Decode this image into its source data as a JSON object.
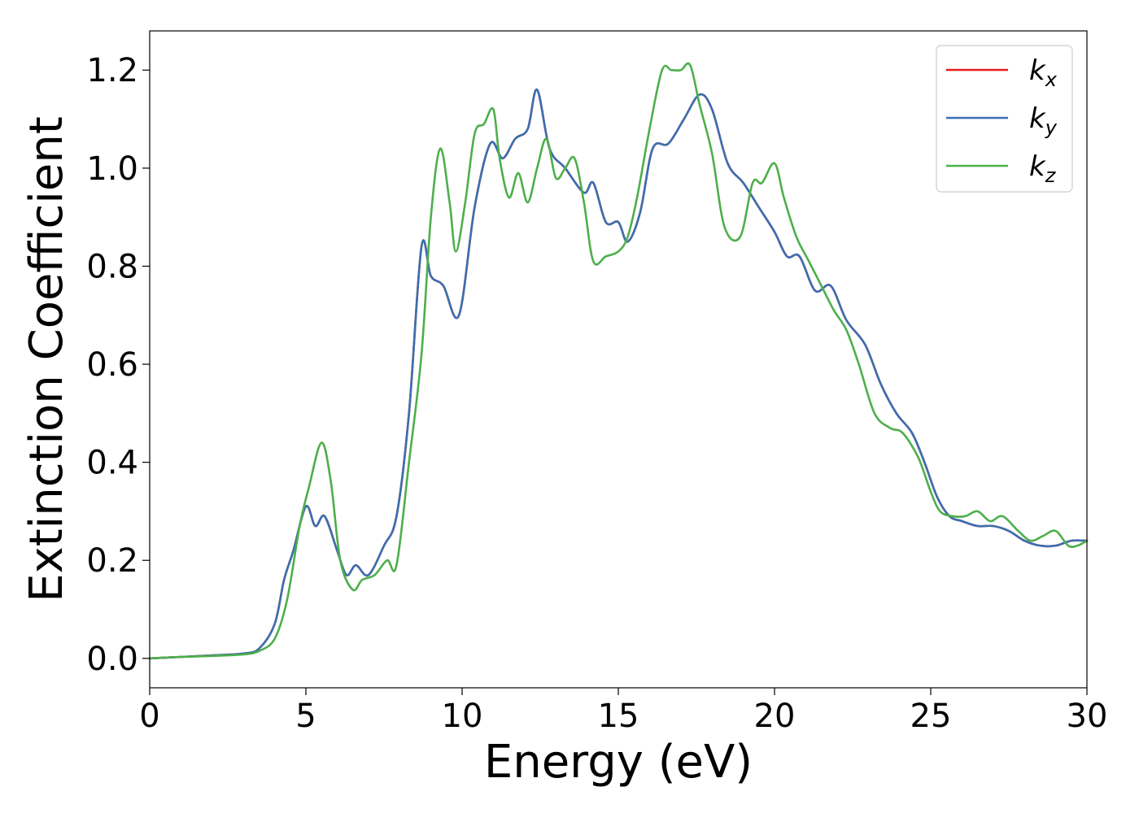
{
  "chart_data": {
    "type": "line",
    "xlabel": "Energy (eV)",
    "ylabel": "Extinction Coefficient",
    "xlim": [
      0,
      30
    ],
    "ylim": [
      -0.06,
      1.28
    ],
    "xticks": [
      0,
      5,
      10,
      15,
      20,
      25,
      30
    ],
    "xtick_labels": [
      "0",
      "5",
      "10",
      "15",
      "20",
      "25",
      "30"
    ],
    "yticks": [
      0.0,
      0.2,
      0.4,
      0.6,
      0.8,
      1.0,
      1.2
    ],
    "ytick_labels": [
      "0.0",
      "0.2",
      "0.4",
      "0.6",
      "0.8",
      "1.0",
      "1.2"
    ],
    "grid": false,
    "legend_position": "top-right",
    "series": [
      {
        "name": "k_x",
        "legend_base": "k",
        "legend_sub": "x",
        "color": "#e41a1c",
        "x": [
          0,
          1,
          2,
          3,
          3.5,
          4,
          4.3,
          4.6,
          5,
          5.3,
          5.6,
          6,
          6.3,
          6.6,
          7,
          7.5,
          7.9,
          8.3,
          8.7,
          9,
          9.4,
          9.9,
          10.4,
          10.9,
          11.3,
          11.7,
          12.1,
          12.4,
          12.8,
          13.3,
          13.9,
          14.2,
          14.6,
          15,
          15.3,
          15.7,
          16.1,
          16.6,
          17.1,
          17.6,
          18,
          18.5,
          19,
          19.5,
          20,
          20.4,
          20.8,
          21.3,
          21.8,
          22.3,
          22.9,
          23.4,
          23.9,
          24.4,
          24.8,
          25.2,
          25.6,
          26,
          26.5,
          27,
          27.5,
          28,
          28.5,
          29,
          29.5,
          30
        ],
        "y": [
          0.0,
          0.003,
          0.006,
          0.01,
          0.02,
          0.07,
          0.16,
          0.22,
          0.31,
          0.27,
          0.29,
          0.22,
          0.17,
          0.19,
          0.17,
          0.23,
          0.29,
          0.5,
          0.84,
          0.78,
          0.76,
          0.7,
          0.92,
          1.05,
          1.02,
          1.06,
          1.08,
          1.16,
          1.04,
          1.0,
          0.95,
          0.97,
          0.89,
          0.89,
          0.85,
          0.91,
          1.04,
          1.05,
          1.1,
          1.15,
          1.12,
          1.01,
          0.97,
          0.92,
          0.87,
          0.82,
          0.82,
          0.75,
          0.76,
          0.69,
          0.64,
          0.56,
          0.5,
          0.46,
          0.4,
          0.33,
          0.29,
          0.28,
          0.27,
          0.27,
          0.26,
          0.24,
          0.23,
          0.23,
          0.24,
          0.24
        ]
      },
      {
        "name": "k_y",
        "legend_base": "k",
        "legend_sub": "y",
        "color": "#3a6fb0",
        "x": [
          0,
          1,
          2,
          3,
          3.5,
          4,
          4.3,
          4.6,
          5,
          5.3,
          5.6,
          6,
          6.3,
          6.6,
          7,
          7.5,
          7.9,
          8.3,
          8.7,
          9,
          9.4,
          9.9,
          10.4,
          10.9,
          11.3,
          11.7,
          12.1,
          12.4,
          12.8,
          13.3,
          13.9,
          14.2,
          14.6,
          15,
          15.3,
          15.7,
          16.1,
          16.6,
          17.1,
          17.6,
          18,
          18.5,
          19,
          19.5,
          20,
          20.4,
          20.8,
          21.3,
          21.8,
          22.3,
          22.9,
          23.4,
          23.9,
          24.4,
          24.8,
          25.2,
          25.6,
          26,
          26.5,
          27,
          27.5,
          28,
          28.5,
          29,
          29.5,
          30
        ],
        "y": [
          0.0,
          0.003,
          0.006,
          0.01,
          0.02,
          0.07,
          0.16,
          0.22,
          0.31,
          0.27,
          0.29,
          0.22,
          0.17,
          0.19,
          0.17,
          0.23,
          0.29,
          0.5,
          0.84,
          0.78,
          0.76,
          0.7,
          0.92,
          1.05,
          1.02,
          1.06,
          1.08,
          1.16,
          1.04,
          1.0,
          0.95,
          0.97,
          0.89,
          0.89,
          0.85,
          0.91,
          1.04,
          1.05,
          1.1,
          1.15,
          1.12,
          1.01,
          0.97,
          0.92,
          0.87,
          0.82,
          0.82,
          0.75,
          0.76,
          0.69,
          0.64,
          0.56,
          0.5,
          0.46,
          0.4,
          0.33,
          0.29,
          0.28,
          0.27,
          0.27,
          0.26,
          0.24,
          0.23,
          0.23,
          0.24,
          0.24
        ]
      },
      {
        "name": "k_z",
        "legend_base": "k",
        "legend_sub": "z",
        "color": "#4daf4a",
        "x": [
          0,
          1,
          2,
          3,
          3.5,
          4,
          4.4,
          4.8,
          5.1,
          5.5,
          5.8,
          6.1,
          6.5,
          6.8,
          7.2,
          7.6,
          7.9,
          8.3,
          8.7,
          9.0,
          9.3,
          9.6,
          9.8,
          10.1,
          10.4,
          10.7,
          11.0,
          11.2,
          11.5,
          11.8,
          12.1,
          12.4,
          12.7,
          13.0,
          13.3,
          13.6,
          13.9,
          14.2,
          14.6,
          15.0,
          15.3,
          15.6,
          16.0,
          16.4,
          16.7,
          17.0,
          17.3,
          17.6,
          18.0,
          18.4,
          18.9,
          19.3,
          19.6,
          20.0,
          20.3,
          20.7,
          21.1,
          21.5,
          21.9,
          22.3,
          22.7,
          23.2,
          23.7,
          24.1,
          24.6,
          25.0,
          25.3,
          25.7,
          26.1,
          26.5,
          26.9,
          27.3,
          27.8,
          28.2,
          28.6,
          29.0,
          29.4,
          29.7,
          30.0
        ],
        "y": [
          0.0,
          0.003,
          0.005,
          0.008,
          0.015,
          0.04,
          0.12,
          0.27,
          0.35,
          0.44,
          0.36,
          0.2,
          0.14,
          0.16,
          0.17,
          0.2,
          0.19,
          0.4,
          0.62,
          0.9,
          1.04,
          0.93,
          0.83,
          0.93,
          1.07,
          1.09,
          1.12,
          1.02,
          0.94,
          0.99,
          0.93,
          1.0,
          1.06,
          0.98,
          1.0,
          1.02,
          0.93,
          0.81,
          0.82,
          0.83,
          0.86,
          0.94,
          1.08,
          1.2,
          1.2,
          1.2,
          1.21,
          1.13,
          1.03,
          0.88,
          0.86,
          0.97,
          0.97,
          1.01,
          0.94,
          0.86,
          0.81,
          0.76,
          0.71,
          0.67,
          0.6,
          0.5,
          0.47,
          0.46,
          0.41,
          0.34,
          0.3,
          0.29,
          0.29,
          0.3,
          0.28,
          0.29,
          0.26,
          0.24,
          0.25,
          0.26,
          0.23,
          0.23,
          0.24
        ]
      }
    ]
  }
}
